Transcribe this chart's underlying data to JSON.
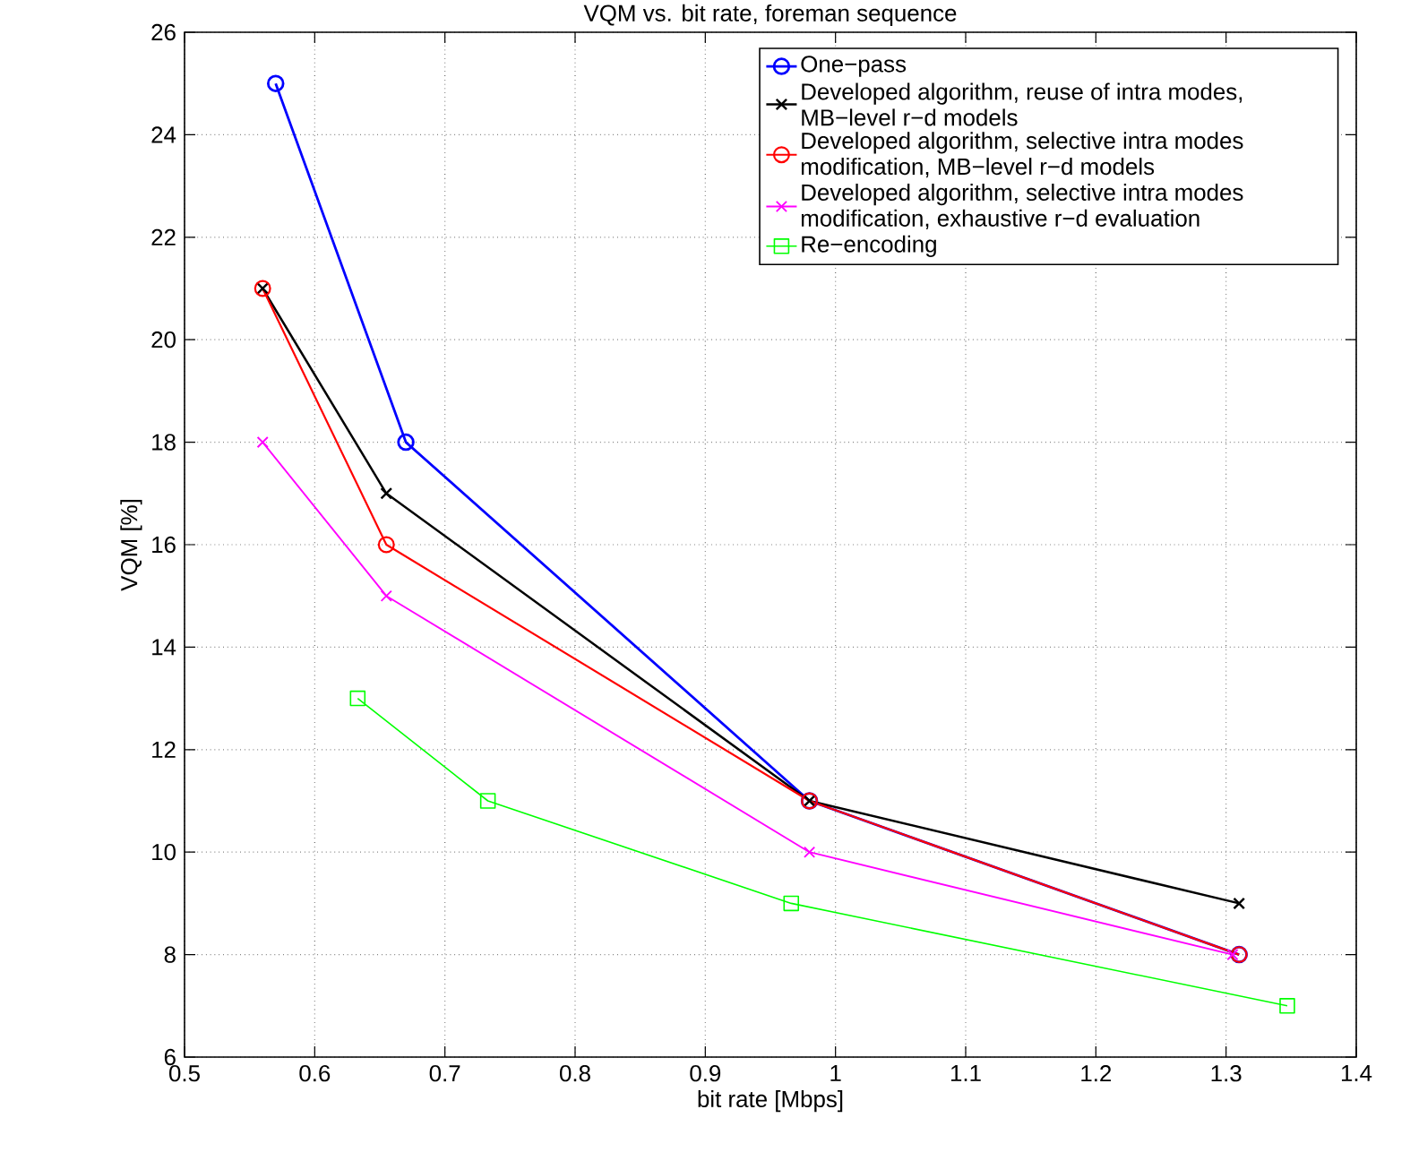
{
  "chart_data": {
    "type": "line",
    "title": "VQM vs. bit rate, foreman sequence",
    "xlabel": "bit rate [Mbps]",
    "ylabel": "VQM [%]",
    "xlim": [
      0.5,
      1.4
    ],
    "xticks": [
      0.5,
      0.6,
      0.7,
      0.8,
      0.9,
      1,
      1.1,
      1.2,
      1.3,
      1.4
    ],
    "ylim": [
      6,
      26
    ],
    "yticks": [
      6,
      8,
      10,
      12,
      14,
      16,
      18,
      20,
      22,
      24,
      26
    ],
    "grid": true,
    "legend": "top right",
    "series": [
      {
        "name": "One−pass",
        "color": "#0000ff",
        "marker": "circle",
        "x": [
          0.57,
          0.67,
          0.98,
          1.31
        ],
        "values": [
          25,
          18,
          11,
          8
        ]
      },
      {
        "name": "Developed algorithm, reuse of intra modes, MB−level r−d models",
        "color": "#000000",
        "marker": "cross",
        "x": [
          0.56,
          0.655,
          0.98,
          1.31
        ],
        "values": [
          21,
          17,
          11,
          9
        ]
      },
      {
        "name": "Developed algorithm, selective intra modes modification, MB−level r−d models",
        "color": "#ff0000",
        "marker": "circle",
        "x": [
          0.56,
          0.655,
          0.98,
          1.31
        ],
        "values": [
          21,
          16,
          11,
          8
        ]
      },
      {
        "name": "Developed algorithm, selective intra modes modification, exhaustive r−d evaluation",
        "color": "#ff00ff",
        "marker": "cross",
        "x": [
          0.56,
          0.655,
          0.98,
          1.305
        ],
        "values": [
          18,
          15,
          10,
          8
        ]
      },
      {
        "name": "Re−encoding",
        "color": "#00ff00",
        "marker": "square",
        "x": [
          0.633,
          0.733,
          0.966,
          1.347
        ],
        "values": [
          13,
          11,
          9,
          7
        ]
      }
    ]
  }
}
